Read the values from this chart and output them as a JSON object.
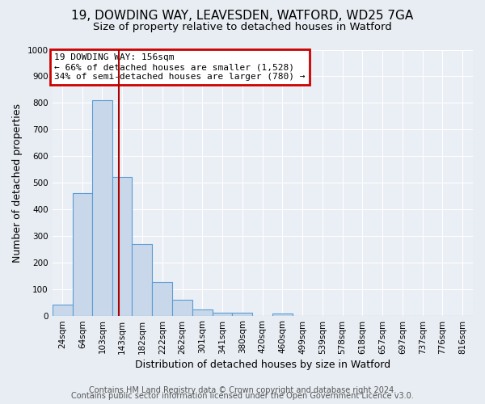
{
  "title_line1": "19, DOWDING WAY, LEAVESDEN, WATFORD, WD25 7GA",
  "title_line2": "Size of property relative to detached houses in Watford",
  "xlabel": "Distribution of detached houses by size in Watford",
  "ylabel": "Number of detached properties",
  "bin_labels": [
    "24sqm",
    "64sqm",
    "103sqm",
    "143sqm",
    "182sqm",
    "222sqm",
    "262sqm",
    "301sqm",
    "341sqm",
    "380sqm",
    "420sqm",
    "460sqm",
    "499sqm",
    "539sqm",
    "578sqm",
    "618sqm",
    "657sqm",
    "697sqm",
    "737sqm",
    "776sqm",
    "816sqm"
  ],
  "bin_edges": [
    24,
    64,
    103,
    143,
    182,
    222,
    262,
    301,
    341,
    380,
    420,
    460,
    499,
    539,
    578,
    618,
    657,
    697,
    737,
    776,
    816
  ],
  "bar_heights": [
    40,
    460,
    810,
    520,
    270,
    125,
    58,
    22,
    12,
    10,
    0,
    8,
    0,
    0,
    0,
    0,
    0,
    0,
    0,
    0,
    0
  ],
  "bar_color": "#c8d8ea",
  "bar_edge_color": "#5b9bd5",
  "ylim": [
    0,
    1000
  ],
  "yticks": [
    0,
    100,
    200,
    300,
    400,
    500,
    600,
    700,
    800,
    900,
    1000
  ],
  "property_size": 156,
  "vline_color": "#aa0000",
  "annotation_text_line1": "19 DOWDING WAY: 156sqm",
  "annotation_text_line2": "← 66% of detached houses are smaller (1,528)",
  "annotation_text_line3": "34% of semi-detached houses are larger (780) →",
  "annotation_box_facecolor": "#ffffff",
  "annotation_box_edge": "#cc0000",
  "footer_line1": "Contains HM Land Registry data © Crown copyright and database right 2024.",
  "footer_line2": "Contains public sector information licensed under the Open Government Licence v3.0.",
  "bg_color": "#e8edf3",
  "plot_bg_color": "#eaeff5",
  "grid_color": "#ffffff",
  "title1_fontsize": 11,
  "title2_fontsize": 9.5,
  "axis_label_fontsize": 9,
  "tick_fontsize": 7.5,
  "footer_fontsize": 7,
  "annotation_fontsize": 8
}
